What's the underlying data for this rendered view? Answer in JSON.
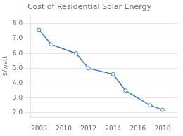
{
  "chart_data": {
    "type": "line",
    "title": "Cost of Residential Solar Energy",
    "ylabel": "$/watt",
    "x": [
      2008,
      2009,
      2011,
      2012,
      2014,
      2015,
      2017,
      2018
    ],
    "values": [
      7.6,
      6.6,
      6.0,
      5.0,
      4.6,
      3.5,
      2.5,
      2.2
    ],
    "color": "#3a7abf",
    "marker": "circle",
    "xlim": [
      2007.3,
      2019.2
    ],
    "xticks": [
      2008,
      2010,
      2012,
      2014,
      2016,
      2018
    ],
    "ylim": [
      1.7,
      8.6
    ],
    "yticks": [
      {
        "value": 2.0,
        "label": "2.0"
      },
      {
        "value": 3.0,
        "label": "3.0"
      },
      {
        "value": 4.0,
        "label": "4.0"
      },
      {
        "value": 5.0,
        "label": "5.0"
      },
      {
        "value": 6.0,
        "label": "6.0"
      },
      {
        "value": 7.0,
        "label": "7.0"
      },
      {
        "value": 8.0,
        "label": "8.0"
      }
    ],
    "grid": true
  }
}
